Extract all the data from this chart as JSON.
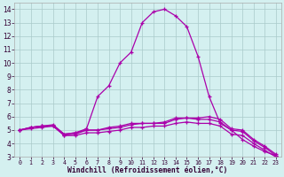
{
  "x": [
    0,
    1,
    2,
    3,
    4,
    5,
    6,
    7,
    8,
    9,
    10,
    11,
    12,
    13,
    14,
    15,
    16,
    17,
    18,
    19,
    20,
    21,
    22,
    23
  ],
  "line_main": [
    5.0,
    5.2,
    5.3,
    5.3,
    4.7,
    4.8,
    5.1,
    7.5,
    8.3,
    10.0,
    10.8,
    13.0,
    13.8,
    14.0,
    13.5,
    12.7,
    10.5,
    7.5,
    5.5,
    5.0,
    4.3,
    3.8,
    3.4,
    3.1
  ],
  "line_a": [
    5.0,
    5.2,
    5.3,
    5.4,
    4.7,
    4.8,
    5.0,
    5.0,
    5.2,
    5.3,
    5.5,
    5.5,
    5.5,
    5.6,
    5.9,
    5.9,
    5.9,
    6.0,
    5.8,
    5.1,
    5.0,
    4.3,
    3.8,
    3.2
  ],
  "line_b": [
    5.0,
    5.2,
    5.3,
    5.3,
    4.6,
    4.7,
    5.0,
    5.0,
    5.1,
    5.2,
    5.4,
    5.5,
    5.5,
    5.5,
    5.8,
    5.9,
    5.8,
    5.8,
    5.6,
    5.0,
    4.9,
    4.2,
    3.7,
    3.1
  ],
  "line_c": [
    5.0,
    5.1,
    5.2,
    5.3,
    4.6,
    4.6,
    4.8,
    4.8,
    4.9,
    5.0,
    5.2,
    5.2,
    5.3,
    5.3,
    5.5,
    5.6,
    5.5,
    5.5,
    5.3,
    4.7,
    4.6,
    4.0,
    3.5,
    3.0
  ],
  "color": "#aa00aa",
  "bg_color": "#d4f0f0",
  "grid_color": "#aacaca",
  "xlabel": "Windchill (Refroidissement éolien,°C)",
  "ylim": [
    3.0,
    14.5
  ],
  "xlim": [
    -0.5,
    23.5
  ],
  "yticks": [
    3,
    4,
    5,
    6,
    7,
    8,
    9,
    10,
    11,
    12,
    13,
    14
  ],
  "xticks": [
    0,
    1,
    2,
    3,
    4,
    5,
    6,
    7,
    8,
    9,
    10,
    11,
    12,
    13,
    14,
    15,
    16,
    17,
    18,
    19,
    20,
    21,
    22,
    23
  ],
  "xtick_labels": [
    "0",
    "1",
    "2",
    "3",
    "4",
    "5",
    "6",
    "7",
    "8",
    "9",
    "10",
    "11",
    "12",
    "13",
    "14",
    "15",
    "16",
    "17",
    "18",
    "19",
    "20",
    "21",
    "22",
    "23"
  ]
}
